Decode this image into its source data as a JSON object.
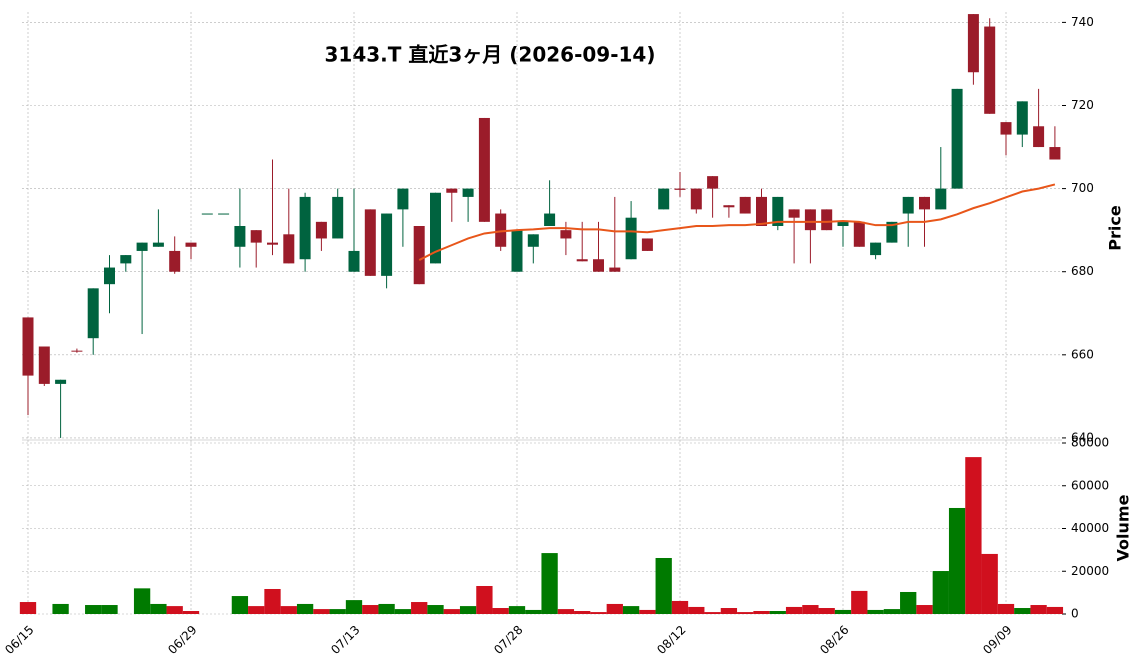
{
  "chart_data": [
    {
      "type": "candlestick",
      "title": "3143.T  直近3ヶ月  (2026-09-14)",
      "ylabel": "Price",
      "categories": [
        "06/15",
        null,
        null,
        null,
        null,
        null,
        null,
        null,
        null,
        null,
        "06/29",
        null,
        null,
        null,
        null,
        null,
        null,
        null,
        null,
        null,
        "07/13",
        null,
        null,
        null,
        null,
        null,
        null,
        null,
        null,
        null,
        "07/28",
        null,
        null,
        null,
        null,
        null,
        null,
        null,
        null,
        null,
        "08/12",
        null,
        null,
        null,
        null,
        null,
        null,
        null,
        null,
        null,
        "08/26",
        null,
        null,
        null,
        null,
        null,
        null,
        null,
        null,
        null,
        "09/09",
        null,
        null,
        null
      ],
      "open": [
        669,
        662,
        653,
        661,
        664,
        677,
        682,
        685,
        686,
        685,
        687,
        694,
        694,
        686,
        690,
        687,
        689,
        683,
        692,
        688,
        680,
        695,
        679,
        695,
        691,
        682,
        700,
        698,
        717,
        694,
        680,
        686,
        691,
        690,
        683,
        683,
        681,
        683,
        688,
        695,
        700,
        700,
        703,
        696,
        698,
        698,
        691,
        695,
        695,
        695,
        691,
        692,
        684,
        687,
        694,
        698,
        695,
        700,
        742,
        739,
        716,
        713,
        715,
        710
      ],
      "high": [
        669,
        662,
        654,
        661.5,
        676,
        684,
        684,
        687,
        695,
        688.5,
        687,
        694,
        694,
        700,
        690,
        707,
        700,
        699,
        692,
        700,
        700,
        695,
        694,
        700,
        691,
        699,
        700,
        700,
        717,
        695,
        690,
        689,
        702,
        692,
        692,
        692,
        698,
        697,
        688,
        700,
        704,
        700,
        703,
        696,
        698,
        700,
        698,
        695,
        695,
        695,
        692,
        692,
        687,
        692,
        698,
        698,
        710,
        724,
        742,
        741,
        716,
        721,
        724,
        715
      ],
      "low": [
        645.5,
        652.5,
        640,
        660.5,
        660,
        670,
        680,
        665,
        686,
        679.5,
        683,
        694,
        694,
        681,
        681,
        684,
        682,
        680,
        685,
        688,
        680,
        679,
        676,
        686,
        677,
        682,
        692,
        692,
        692,
        685,
        680,
        682,
        691,
        684,
        682.5,
        680,
        680,
        683,
        685,
        695,
        698,
        694,
        693,
        693,
        694,
        691,
        690,
        682,
        682,
        690,
        686,
        686,
        683,
        687,
        686,
        686,
        695,
        700,
        725,
        718,
        708,
        710,
        710,
        707
      ],
      "close": [
        655,
        653,
        654,
        660.8,
        676,
        681,
        684,
        687,
        687,
        680,
        686,
        694,
        694,
        691,
        687,
        686.5,
        682,
        698,
        688,
        698,
        685,
        679,
        694,
        700,
        677,
        699,
        699,
        700,
        692,
        686,
        690,
        689,
        694,
        688,
        682.5,
        680,
        680,
        693,
        685,
        700,
        699.7,
        695,
        700,
        695.5,
        694,
        691,
        698,
        693,
        690,
        690,
        692,
        686,
        687,
        692,
        698,
        695,
        700,
        724,
        728,
        718,
        713,
        721,
        710,
        707
      ],
      "ma": {
        "color": "#e8561a",
        "values": [
          null,
          null,
          null,
          null,
          null,
          null,
          null,
          null,
          null,
          null,
          null,
          null,
          null,
          null,
          null,
          null,
          null,
          null,
          null,
          null,
          null,
          null,
          null,
          null,
          682.8,
          684.8,
          686.4,
          688,
          689.2,
          689.7,
          690,
          690.2,
          690.5,
          690.5,
          690.2,
          690.2,
          689.7,
          689.7,
          689.5,
          690,
          690.5,
          691,
          691,
          691.2,
          691.2,
          691.5,
          692,
          692,
          692,
          692,
          692.2,
          692,
          691.2,
          691.2,
          692,
          692,
          692.6,
          693.8,
          695.3,
          696.5,
          697.9,
          699.3,
          700,
          701
        ]
      },
      "up_color": "#00633f",
      "down_color": "#9b1c2a",
      "ylim": [
        639.5,
        742.5
      ],
      "yticks": [
        640,
        660,
        680,
        700,
        720,
        740
      ],
      "grid": true
    },
    {
      "type": "bar",
      "ylabel": "Volume",
      "values": [
        5600,
        0,
        4700,
        0,
        4200,
        4200,
        0,
        12000,
        4700,
        3700,
        1400,
        0,
        0,
        8400,
        3700,
        11700,
        3700,
        4700,
        2300,
        2300,
        6500,
        4200,
        4700,
        2300,
        5600,
        4200,
        2300,
        3700,
        13100,
        2800,
        3700,
        1900,
        28500,
        2300,
        1400,
        900,
        4700,
        3700,
        1900,
        26200,
        6100,
        3300,
        900,
        2800,
        900,
        1400,
        1400,
        3300,
        4200,
        2800,
        1900,
        10800,
        1900,
        2300,
        10300,
        4200,
        20100,
        49600,
        73400,
        28100,
        4700,
        2800,
        4200,
        3300
      ],
      "up_color": "#007a00",
      "down_color": "#d0101e",
      "ylim": [
        0,
        80000
      ],
      "yticks": [
        0,
        20000,
        40000,
        60000,
        80000
      ],
      "grid": true
    }
  ]
}
